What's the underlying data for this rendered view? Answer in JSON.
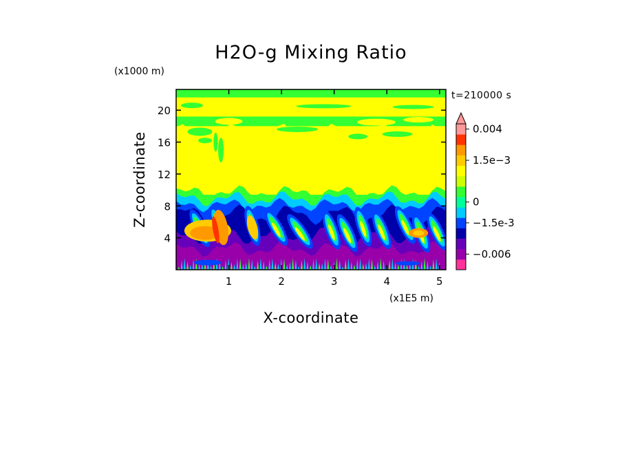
{
  "chart_data": {
    "type": "heatmap",
    "title": "H2O-g Mixing Ratio",
    "xlabel": "X-coordinate",
    "ylabel": "Z-coordinate",
    "x_unit": "(x1E5 m)",
    "y_unit": "(x1000 m)",
    "time_label": "t=210000 s",
    "xlim": [
      0,
      5.12
    ],
    "ylim": [
      0,
      22.6
    ],
    "x_ticks": [
      1,
      2,
      3,
      4,
      5
    ],
    "y_ticks": [
      4,
      8,
      12,
      16,
      20
    ],
    "colorbar": {
      "labels": [
        {
          "text": "0.004",
          "value": 0.004
        },
        {
          "text": "1.5e-3",
          "value": 0.0015
        },
        {
          "text": "0",
          "value": 0
        },
        {
          "text": "-1.5e-3",
          "value": -0.0015
        },
        {
          "text": "-0.006",
          "value": -0.006
        }
      ],
      "levels": [
        {
          "color": "#ff3399",
          "value": -0.0075
        },
        {
          "color": "#9900aa",
          "value": -0.006
        },
        {
          "color": "#6600bb",
          "value": -0.0045
        },
        {
          "color": "#0000aa",
          "value": -0.003
        },
        {
          "color": "#0044ff",
          "value": -0.0015
        },
        {
          "color": "#00ccff",
          "value": -0.00075
        },
        {
          "color": "#00ff99",
          "value": 0
        },
        {
          "color": "#33ff33",
          "value": 0.00025
        },
        {
          "color": "#ccff00",
          "value": 0.0005
        },
        {
          "color": "#ffff00",
          "value": 0.001
        },
        {
          "color": "#ffcc00",
          "value": 0.0015
        },
        {
          "color": "#ff9900",
          "value": 0.002
        },
        {
          "color": "#ff3300",
          "value": 0.003
        },
        {
          "color": "#ff9999",
          "value": 0.004
        }
      ]
    }
  }
}
